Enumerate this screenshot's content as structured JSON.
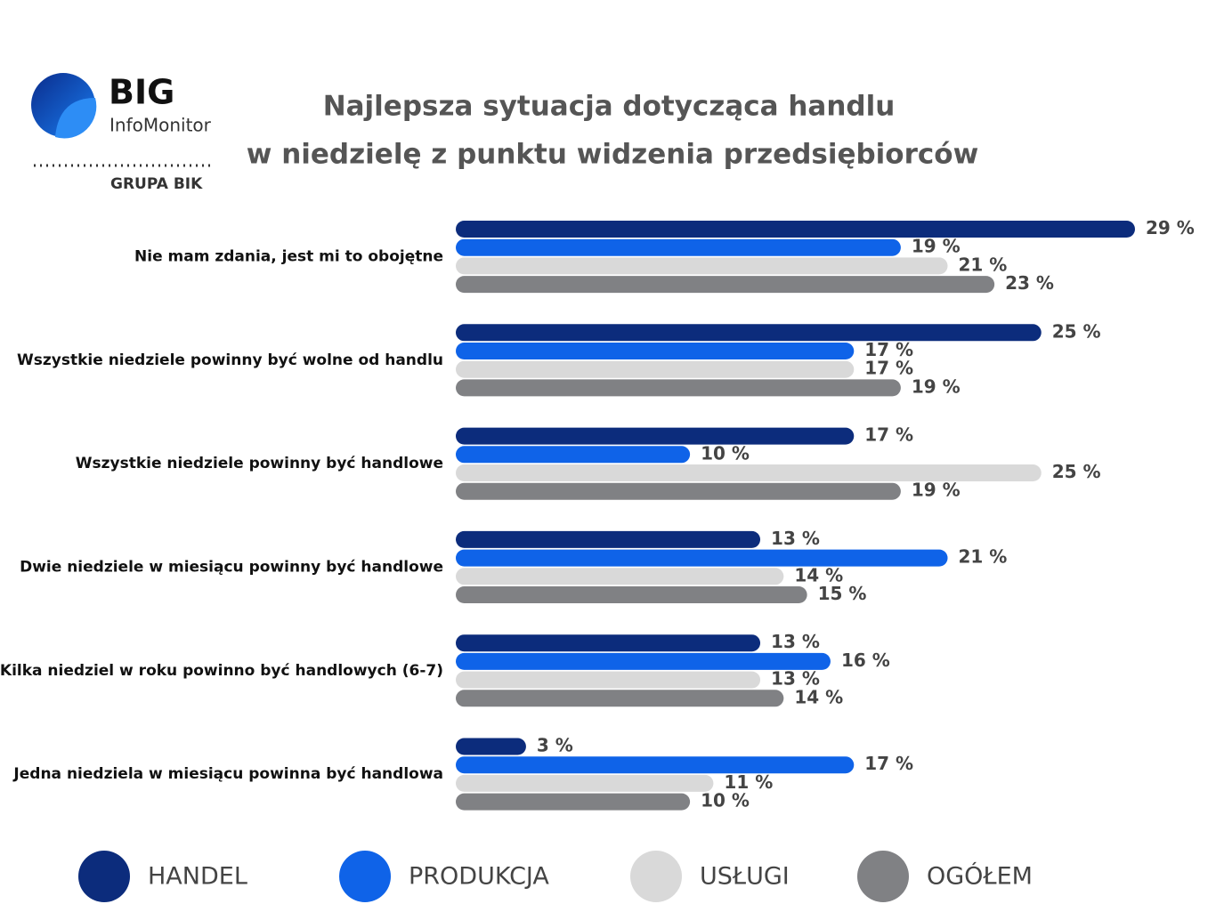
{
  "logo": {
    "name": "BIG",
    "product": "InfoMonitor",
    "group": "GRUPA BIK"
  },
  "chart_data": {
    "type": "hbar",
    "title": [
      "Najlepsza sytuacja dotycząca handlu",
      "w niedzielę z punktu widzenia przedsiębiorców"
    ],
    "categories": [
      "Nie mam zdania, jest mi to obojętne",
      "Wszystkie niedziele powinny być wolne od handlu",
      "Wszystkie niedziele powinny być handlowe",
      "Dwie niedziele w miesiącu powinny być handlowe",
      "Kilka niedziel w roku powinno być handlowych (6-7)",
      "Jedna niedziela w miesiącu powinna być handlowa"
    ],
    "series": [
      {
        "name": "HANDEL",
        "color": "#0c2c7c",
        "values": [
          29,
          25,
          17,
          13,
          13,
          3
        ],
        "value_labels": [
          "29 %",
          "25 %",
          "17 %",
          "13 %",
          "13 %",
          "3 %"
        ]
      },
      {
        "name": "PRODUKCJA",
        "color": "#0f63e8",
        "values": [
          19,
          17,
          10,
          21,
          16,
          17
        ],
        "value_labels": [
          "19 %",
          "17 %",
          "10 %",
          "21 %",
          "16 %",
          "17 %"
        ]
      },
      {
        "name": "USŁUGI",
        "color": "#d9d9d9",
        "values": [
          21,
          17,
          25,
          14,
          13,
          11
        ],
        "value_labels": [
          "21 %",
          "17 %",
          "25 %",
          "14 %",
          "13 %",
          "11 %"
        ]
      },
      {
        "name": "OGÓŁEM",
        "color": "#808184",
        "values": [
          23,
          19,
          19,
          15,
          14,
          10
        ],
        "value_labels": [
          "23 %",
          "19 %",
          "19 %",
          "15 %",
          "14 %",
          "10 %"
        ]
      }
    ]
  }
}
